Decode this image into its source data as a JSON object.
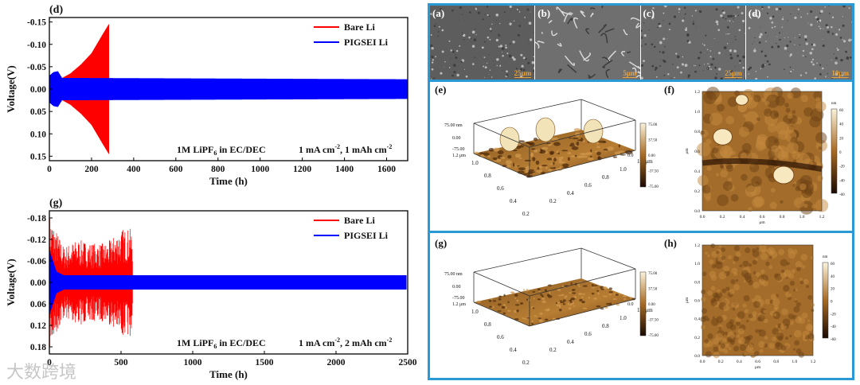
{
  "chart_data": [
    {
      "type": "line",
      "panel": "(d)",
      "xlabel": "Time (h)",
      "ylabel": "Voltage(V)",
      "xlim": [
        0,
        1700
      ],
      "ylim": [
        -0.16,
        0.16
      ],
      "y_inverted": true,
      "x_ticks": [
        "0",
        "200",
        "400",
        "600",
        "800",
        "1000",
        "1200",
        "1400",
        "1600"
      ],
      "y_ticks": [
        "-0.15",
        "-0.10",
        "-0.05",
        "0.00",
        "0.05",
        "0.10",
        "0.15"
      ],
      "legend_position": "top-right",
      "annotation_electrolyte": "1M LiPF",
      "annotation_sub": "6",
      "annotation_solvent": " in EC/DEC",
      "annotation_current": "1 mA cm",
      "annotation_current_sup": "-2",
      "annotation_capacity": ", 1 mAh cm",
      "annotation_capacity_sup": "-2",
      "series": [
        {
          "name": "Bare Li",
          "color": "#ff0000",
          "x": [
            0,
            50,
            100,
            150,
            200,
            250,
            282
          ],
          "envelope": [
            0.02,
            0.022,
            0.035,
            0.055,
            0.08,
            0.12,
            0.145
          ]
        },
        {
          "name": "PIGSEI Li",
          "color": "#0000ff",
          "x": [
            0,
            20,
            40,
            60,
            1700
          ],
          "envelope": [
            0.03,
            0.038,
            0.04,
            0.025,
            0.022
          ]
        }
      ]
    },
    {
      "type": "line",
      "panel": "(g)",
      "xlabel": "Time (h)",
      "ylabel": "Voltage(V)",
      "xlim": [
        0,
        2500
      ],
      "ylim": [
        -0.2,
        0.2
      ],
      "y_inverted": true,
      "x_ticks": [
        "0",
        "500",
        "1000",
        "1500",
        "2000",
        "2500"
      ],
      "y_ticks": [
        "-0.18",
        "-0.12",
        "-0.06",
        "0.00",
        "0.06",
        "0.12",
        "0.18"
      ],
      "legend_position": "top-right",
      "annotation_electrolyte": "1M LiPF",
      "annotation_sub": "6",
      "annotation_solvent": " in EC/DEC",
      "annotation_current": "1 mA cm",
      "annotation_current_sup": "-2",
      "annotation_capacity": ", 2 mAh cm",
      "annotation_capacity_sup": "-2",
      "series": [
        {
          "name": "Bare Li",
          "color": "#ff0000",
          "x": [
            0,
            100,
            200,
            300,
            400,
            500,
            580
          ],
          "envelope": [
            0.19,
            0.1,
            0.12,
            0.11,
            0.11,
            0.15,
            0.15
          ]
        },
        {
          "name": "PIGSEI Li",
          "color": "#0000ff",
          "x": [
            0,
            50,
            100,
            2490
          ],
          "envelope": [
            0.09,
            0.03,
            0.02,
            0.02
          ]
        }
      ]
    },
    {
      "type": "heatmap",
      "panel": "(f)",
      "x_ticks": [
        "0.0",
        "0.2",
        "0.4",
        "0.6",
        "0.8",
        "1.0",
        "1.2"
      ],
      "y_ticks": [
        "0.0",
        "0.2",
        "0.4",
        "0.6",
        "0.8",
        "1.0",
        "1.2"
      ],
      "xlabel": "μm",
      "ylabel": "μm",
      "colorbar_unit": "nm",
      "colorbar_ticks": [
        "60",
        "40",
        "20",
        "0",
        "-20",
        "-40",
        "-60"
      ]
    },
    {
      "type": "heatmap",
      "panel": "(h)",
      "x_ticks": [
        "0.0",
        "0.2",
        "0.4",
        "0.6",
        "0.8",
        "1.0",
        "1.2"
      ],
      "y_ticks": [
        "0.0",
        "0.2",
        "0.4",
        "0.6",
        "0.8",
        "1.0",
        "1.2"
      ],
      "xlabel": "μm",
      "ylabel": "μm",
      "colorbar_unit": "nm",
      "colorbar_ticks": [
        "60",
        "40",
        "20",
        "0",
        "-20",
        "-40",
        "-60"
      ]
    }
  ],
  "surface_3d": [
    {
      "panel": "(e)",
      "z_top": "75.00 nm",
      "z_mid": "0.00",
      "z_low": "-75.00",
      "y_top": "1.2 μm",
      "y_ticks": [
        "1.0",
        "0.8",
        "0.6",
        "0.4",
        "0.2"
      ],
      "x_ticks": [
        "0.2",
        "0.4",
        "0.6",
        "0.8",
        "1.0",
        "1.2 μm"
      ],
      "x_zero": "0.0",
      "colorbar_ticks": [
        "75.00",
        "37.50",
        "0.00",
        "-37.50",
        "-75.00"
      ]
    },
    {
      "panel": "(g)",
      "z_top": "75.00 nm",
      "z_mid": "0.00",
      "z_low": "-75.00",
      "y_top": "1.2 μm",
      "y_ticks": [
        "1.0",
        "0.8",
        "0.6",
        "0.4",
        "0.2"
      ],
      "x_ticks": [
        "0.2",
        "0.4",
        "0.6",
        "0.8",
        "1.0",
        "1.2 μm"
      ],
      "x_zero": "0.0",
      "colorbar_ticks": [
        "75.00",
        "37.50",
        "0.00",
        "-37.50",
        "-75.00"
      ]
    }
  ],
  "sem_panels": [
    {
      "label": "(a)",
      "scale": "25μm"
    },
    {
      "label": "(b)",
      "scale": "5μm"
    },
    {
      "label": "(c)",
      "scale": "25μm"
    },
    {
      "label": "(d)",
      "scale": "10μm"
    }
  ],
  "watermark": "大数跨境",
  "colors": {
    "frame": "#2a9ad6",
    "bare": "#ff0000",
    "pigsei": "#0000ff",
    "afm_dark": "#3a1f08",
    "afm_mid": "#a86a22",
    "afm_light": "#f4d28a"
  }
}
